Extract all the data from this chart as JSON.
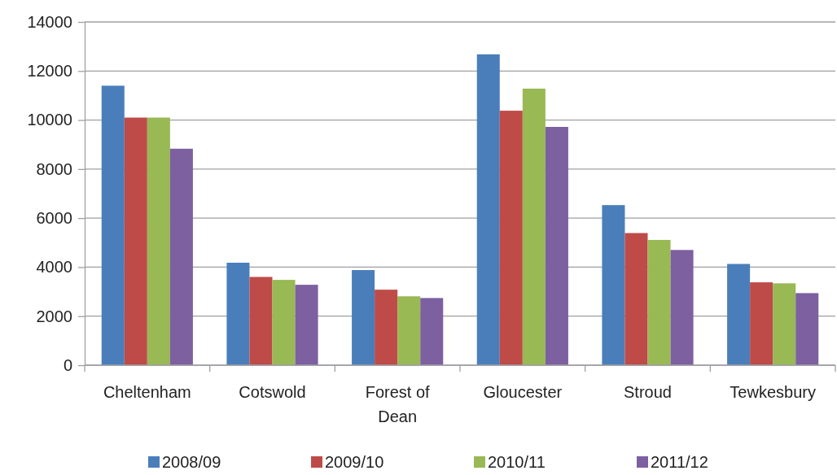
{
  "chart_data": {
    "type": "bar",
    "categories": [
      "Cheltenham",
      "Cotswold",
      "Forest of Dean",
      "Gloucester",
      "Stroud",
      "Tewkesbury"
    ],
    "series": [
      {
        "name": "2008/09",
        "color": "#4a7ebb",
        "values": [
          11400,
          4180,
          3880,
          12680,
          6530,
          4130
        ]
      },
      {
        "name": "2009/10",
        "color": "#be4b48",
        "values": [
          10100,
          3600,
          3080,
          10380,
          5390,
          3380
        ]
      },
      {
        "name": "2010/11",
        "color": "#98b954",
        "values": [
          10100,
          3480,
          2810,
          11280,
          5110,
          3340
        ]
      },
      {
        "name": "2011/12",
        "color": "#7d60a0",
        "values": [
          8830,
          3280,
          2740,
          9720,
          4700,
          2940
        ]
      }
    ],
    "ylim": [
      0,
      14000
    ],
    "yticks": [
      0,
      2000,
      4000,
      6000,
      8000,
      10000,
      12000,
      14000
    ],
    "grid": "y",
    "legend": "bottom"
  }
}
